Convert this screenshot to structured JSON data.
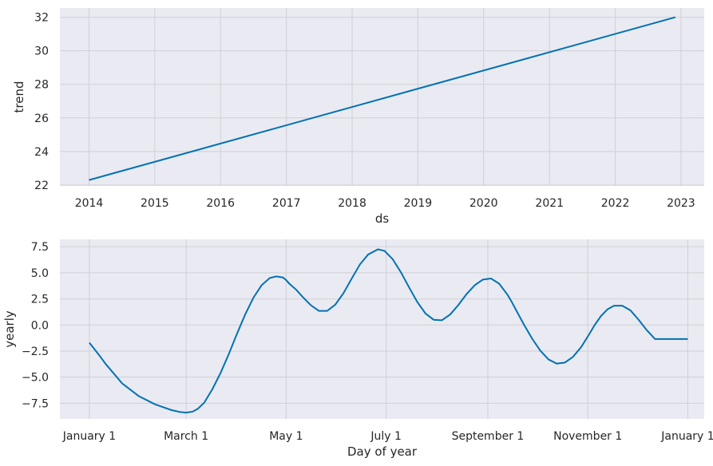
{
  "chart_data": [
    {
      "type": "line",
      "xlabel": "ds",
      "ylabel": "trend",
      "x_ticks": [
        "2014",
        "2015",
        "2016",
        "2017",
        "2018",
        "2019",
        "2020",
        "2021",
        "2022",
        "2023"
      ],
      "y_ticks": [
        "22",
        "24",
        "26",
        "28",
        "30",
        "32"
      ],
      "xlim": [
        "2013-07-23",
        "2023-05-10"
      ],
      "ylim": [
        21.95,
        32.55
      ],
      "grid": true,
      "color": "#0072b2",
      "series": [
        {
          "x": [
            "2014-01-01",
            "2022-12-01"
          ],
          "y": [
            22.3,
            32.0
          ]
        }
      ]
    },
    {
      "type": "line",
      "xlabel": "Day of year",
      "ylabel": "yearly",
      "x_ticks": [
        "January 1",
        "March 1",
        "May 1",
        "July 1",
        "September 1",
        "November 1",
        "January 1"
      ],
      "x_tick_days": [
        0,
        59,
        120,
        181,
        243,
        304,
        365
      ],
      "y_ticks": [
        "−7.5",
        "−5.0",
        "−2.5",
        "0.0",
        "2.5",
        "5.0",
        "7.5"
      ],
      "xlim": [
        -18,
        375
      ],
      "ylim": [
        -9.0,
        8.2
      ],
      "grid": true,
      "color": "#0072b2",
      "series": [
        {
          "x": [
            0,
            6,
            10,
            20,
            30,
            40,
            50,
            55,
            59,
            63,
            66,
            70,
            75,
            80,
            85,
            90,
            95,
            100,
            105,
            110,
            114,
            118,
            120,
            122,
            126,
            130,
            135,
            140,
            145,
            150,
            155,
            160,
            165,
            170,
            176,
            180,
            185,
            190,
            195,
            200,
            205,
            210,
            215,
            220,
            225,
            230,
            235,
            240,
            245,
            250,
            255,
            258,
            260,
            265,
            270,
            275,
            280,
            285,
            290,
            295,
            300,
            305,
            308,
            312,
            316,
            320,
            325,
            330,
            335,
            340,
            345,
            350,
            355,
            360,
            365
          ],
          "y": [
            -1.7,
            -2.9,
            -3.75,
            -5.6,
            -6.8,
            -7.6,
            -8.15,
            -8.33,
            -8.4,
            -8.3,
            -8.05,
            -7.45,
            -6.15,
            -4.6,
            -2.8,
            -0.85,
            1.0,
            2.6,
            3.8,
            4.5,
            4.65,
            4.55,
            4.3,
            3.95,
            3.4,
            2.7,
            1.9,
            1.35,
            1.35,
            1.95,
            3.05,
            4.45,
            5.8,
            6.75,
            7.25,
            7.1,
            6.3,
            5.05,
            3.6,
            2.2,
            1.1,
            0.5,
            0.45,
            1.0,
            1.9,
            2.95,
            3.8,
            4.35,
            4.45,
            3.95,
            2.9,
            2.1,
            1.5,
            0.05,
            -1.3,
            -2.45,
            -3.3,
            -3.7,
            -3.6,
            -3.05,
            -2.1,
            -0.85,
            -0.05,
            0.85,
            1.5,
            1.85,
            1.85,
            1.4,
            0.5,
            -0.5,
            -1.35,
            -1.35,
            -1.35,
            -1.35,
            -1.35
          ]
        }
      ]
    }
  ]
}
